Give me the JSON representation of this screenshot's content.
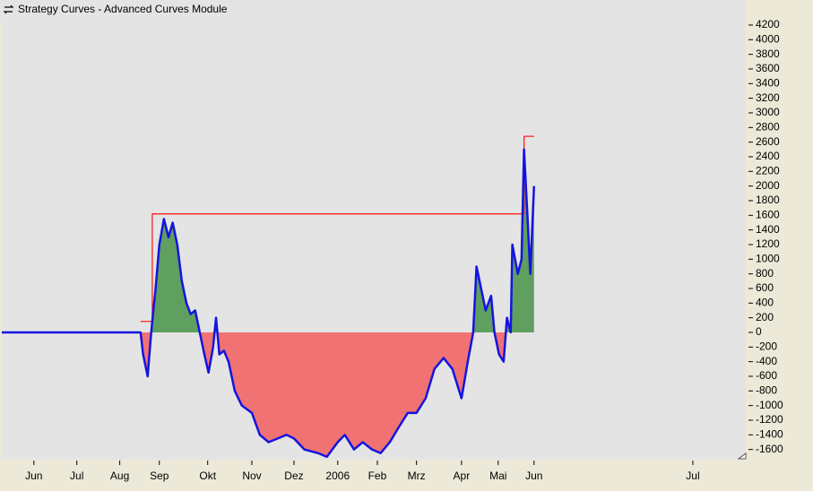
{
  "chart_data": {
    "type": "line",
    "title": "Strategy Curves - Advanced Curves Module",
    "xlim": [
      -0.77,
      17.08
    ],
    "xticks": [
      {
        "value": 0,
        "label": "Jun"
      },
      {
        "value": 1.03,
        "label": "Jul"
      },
      {
        "value": 2.06,
        "label": "Aug"
      },
      {
        "value": 3.01,
        "label": "Sep"
      },
      {
        "value": 4.17,
        "label": "Okt"
      },
      {
        "value": 5.23,
        "label": "Nov"
      },
      {
        "value": 6.24,
        "label": "Dez"
      },
      {
        "value": 7.29,
        "label": "2006"
      },
      {
        "value": 8.24,
        "label": "Feb"
      },
      {
        "value": 9.18,
        "label": "Mrz"
      },
      {
        "value": 10.26,
        "label": "Apr"
      },
      {
        "value": 11.14,
        "label": "Mai"
      },
      {
        "value": 12,
        "label": "Jun"
      },
      {
        "value": 15.81,
        "label": "Jul"
      }
    ],
    "ylim": [
      -1739,
      4273
    ],
    "yticks": [
      -1600,
      -1400,
      -1200,
      -1000,
      -800,
      -600,
      -400,
      -200,
      0,
      200,
      400,
      600,
      800,
      1000,
      1200,
      1400,
      1600,
      1800,
      2000,
      2200,
      2400,
      2600,
      2800,
      3000,
      3200,
      3400,
      3600,
      3800,
      4000,
      4200
    ],
    "positive_fill": "#5f9f5f",
    "negative_fill": "#f07272",
    "series": [
      {
        "color": "#1414e0",
        "x": [
          -0.77,
          2.56,
          2.62,
          2.73,
          2.8,
          2.84,
          2.92,
          3.01,
          3.12,
          3.23,
          3.33,
          3.44,
          3.55,
          3.66,
          3.76,
          3.87,
          3.98,
          4.09,
          4.19,
          4.3,
          4.37,
          4.45,
          4.56,
          4.67,
          4.82,
          4.99,
          5.23,
          5.42,
          5.63,
          5.85,
          6.06,
          6.24,
          6.49,
          6.82,
          7.03,
          7.29,
          7.46,
          7.68,
          7.89,
          8.11,
          8.32,
          8.54,
          8.75,
          8.97,
          9.18,
          9.4,
          9.61,
          9.83,
          10.04,
          10.26,
          10.41,
          10.54,
          10.62,
          10.73,
          10.84,
          10.97,
          11.05,
          11.16,
          11.27,
          11.35,
          11.44,
          11.48,
          11.61,
          11.7,
          11.76,
          11.85,
          11.91,
          12.0
        ],
        "values": [
          0,
          0,
          -300,
          -600,
          -100,
          150,
          600,
          1200,
          1550,
          1300,
          1500,
          1200,
          700,
          400,
          250,
          300,
          0,
          -300,
          -550,
          -200,
          200,
          -300,
          -250,
          -400,
          -800,
          -1000,
          -1100,
          -1400,
          -1500,
          -1450,
          -1400,
          -1450,
          -1600,
          -1650,
          -1700,
          -1500,
          -1400,
          -1600,
          -1500,
          -1600,
          -1650,
          -1500,
          -1300,
          -1100,
          -1100,
          -900,
          -500,
          -350,
          -500,
          -900,
          -400,
          0,
          900,
          600,
          300,
          500,
          0,
          -300,
          -400,
          200,
          0,
          1200,
          800,
          1000,
          2500,
          1500,
          800,
          2000
        ]
      },
      {
        "color": "#ff2020",
        "x": [
          2.56,
          2.84,
          2.84,
          11.76,
          11.76,
          12.0
        ],
        "values": [
          150,
          150,
          1620,
          1620,
          2680,
          2680
        ]
      }
    ]
  }
}
